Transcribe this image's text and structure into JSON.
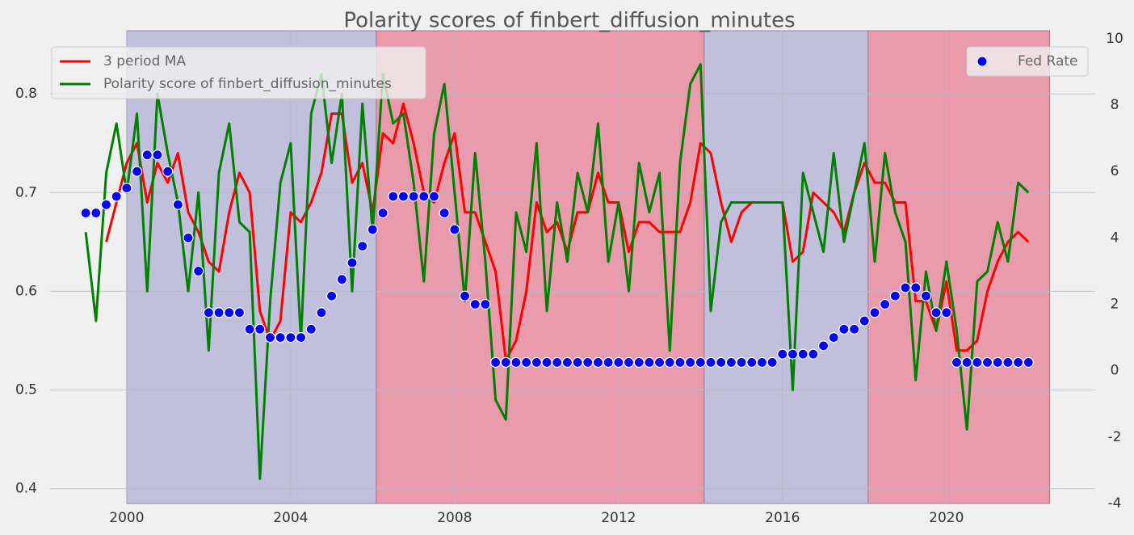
{
  "chart_data": {
    "type": "line",
    "title": "Polarity scores of finbert_diffusion_minutes",
    "x": [
      1999.0,
      1999.25,
      1999.5,
      1999.75,
      2000.0,
      2000.25,
      2000.5,
      2000.75,
      2001.0,
      2001.25,
      2001.5,
      2001.75,
      2002.0,
      2002.25,
      2002.5,
      2002.75,
      2003.0,
      2003.25,
      2003.5,
      2003.75,
      2004.0,
      2004.25,
      2004.5,
      2004.75,
      2005.0,
      2005.25,
      2005.5,
      2005.75,
      2006.0,
      2006.25,
      2006.5,
      2006.75,
      2007.0,
      2007.25,
      2007.5,
      2007.75,
      2008.0,
      2008.25,
      2008.5,
      2008.75,
      2009.0,
      2009.25,
      2009.5,
      2009.75,
      2010.0,
      2010.25,
      2010.5,
      2010.75,
      2011.0,
      2011.25,
      2011.5,
      2011.75,
      2012.0,
      2012.25,
      2012.5,
      2012.75,
      2013.0,
      2013.25,
      2013.5,
      2013.75,
      2014.0,
      2014.25,
      2014.5,
      2014.75,
      2015.0,
      2015.25,
      2015.5,
      2015.75,
      2016.0,
      2016.25,
      2016.5,
      2016.75,
      2017.0,
      2017.25,
      2017.5,
      2017.75,
      2018.0,
      2018.25,
      2018.5,
      2018.75,
      2019.0,
      2019.25,
      2019.5,
      2019.75,
      2020.0,
      2020.25,
      2020.5,
      2020.75,
      2021.0,
      2021.25,
      2021.5,
      2021.75,
      2022.0
    ],
    "series": [
      {
        "name": "3 period MA",
        "type": "line",
        "color": "#ff0000",
        "axis": "y",
        "values": [
          null,
          null,
          0.65,
          0.69,
          0.73,
          0.75,
          0.69,
          0.73,
          0.71,
          0.74,
          0.68,
          0.66,
          0.63,
          0.62,
          0.68,
          0.72,
          0.7,
          0.58,
          0.55,
          0.57,
          0.68,
          0.67,
          0.69,
          0.72,
          0.78,
          0.78,
          0.71,
          0.73,
          0.68,
          0.76,
          0.75,
          0.79,
          0.75,
          0.7,
          0.69,
          0.73,
          0.76,
          0.68,
          0.68,
          0.65,
          0.62,
          0.53,
          0.55,
          0.6,
          0.69,
          0.66,
          0.67,
          0.64,
          0.68,
          0.68,
          0.72,
          0.69,
          0.69,
          0.64,
          0.67,
          0.67,
          0.66,
          0.66,
          0.66,
          0.69,
          0.75,
          0.74,
          0.69,
          0.65,
          0.68,
          0.69,
          0.69,
          0.69,
          0.69,
          0.63,
          0.64,
          0.7,
          0.69,
          0.68,
          0.66,
          0.7,
          0.73,
          0.71,
          0.71,
          0.69,
          0.69,
          0.59,
          0.59,
          0.56,
          0.61,
          0.54,
          0.54,
          0.55,
          0.6,
          0.63,
          0.65,
          0.66,
          0.65
        ]
      },
      {
        "name": "Polarity score of finbert_diffusion_minutes",
        "type": "line",
        "color": "#008000",
        "axis": "y",
        "values": [
          0.66,
          0.57,
          0.72,
          0.77,
          0.7,
          0.78,
          0.6,
          0.8,
          0.74,
          0.69,
          0.6,
          0.7,
          0.54,
          0.72,
          0.77,
          0.67,
          0.66,
          0.41,
          0.59,
          0.71,
          0.75,
          0.55,
          0.78,
          0.82,
          0.73,
          0.8,
          0.6,
          0.79,
          0.66,
          0.82,
          0.77,
          0.78,
          0.71,
          0.61,
          0.76,
          0.81,
          0.7,
          0.59,
          0.74,
          0.63,
          0.49,
          0.47,
          0.68,
          0.64,
          0.75,
          0.58,
          0.69,
          0.63,
          0.72,
          0.68,
          0.77,
          0.63,
          0.69,
          0.6,
          0.73,
          0.68,
          0.72,
          0.54,
          0.73,
          0.81,
          0.83,
          0.58,
          0.67,
          0.69,
          0.69,
          0.69,
          0.69,
          0.69,
          0.69,
          0.5,
          0.72,
          0.68,
          0.64,
          0.74,
          0.65,
          0.7,
          0.75,
          0.63,
          0.74,
          0.68,
          0.65,
          0.51,
          0.62,
          0.56,
          0.63,
          0.56,
          0.46,
          0.61,
          0.62,
          0.67,
          0.63,
          0.71,
          0.7
        ]
      },
      {
        "name": "Fed Rate",
        "type": "scatter",
        "color": "#0000ff",
        "axis": "y2",
        "values": [
          4.75,
          4.75,
          5.0,
          5.25,
          5.5,
          6.0,
          6.5,
          6.5,
          6.0,
          5.0,
          4.0,
          3.0,
          1.75,
          1.75,
          1.75,
          1.75,
          1.25,
          1.25,
          1.0,
          1.0,
          1.0,
          1.0,
          1.25,
          1.75,
          2.25,
          2.75,
          3.25,
          3.75,
          4.25,
          4.75,
          5.25,
          5.25,
          5.25,
          5.25,
          5.25,
          4.75,
          4.25,
          2.25,
          2.0,
          2.0,
          0.25,
          0.25,
          0.25,
          0.25,
          0.25,
          0.25,
          0.25,
          0.25,
          0.25,
          0.25,
          0.25,
          0.25,
          0.25,
          0.25,
          0.25,
          0.25,
          0.25,
          0.25,
          0.25,
          0.25,
          0.25,
          0.25,
          0.25,
          0.25,
          0.25,
          0.25,
          0.25,
          0.25,
          0.5,
          0.5,
          0.5,
          0.5,
          0.75,
          1.0,
          1.25,
          1.25,
          1.5,
          1.75,
          2.0,
          2.25,
          2.5,
          2.5,
          2.25,
          1.75,
          1.75,
          0.25,
          0.25,
          0.25,
          0.25,
          0.25,
          0.25,
          0.25,
          0.25
        ]
      }
    ],
    "spans": [
      {
        "start": 2000.0,
        "end": 2006.09,
        "color": "#c0c0dc"
      },
      {
        "start": 2006.09,
        "end": 2014.09,
        "color": "#e99aab"
      },
      {
        "start": 2014.09,
        "end": 2018.09,
        "color": "#c0c0dc"
      },
      {
        "start": 2018.09,
        "end": 2022.52,
        "color": "#e99aab"
      }
    ],
    "xlim": [
      1998.13,
      2023.63
    ],
    "xticks": [
      2000,
      2004,
      2008,
      2012,
      2016,
      2020
    ],
    "ylim": [
      0.385,
      0.864
    ],
    "yticks": [
      0.4,
      0.5,
      0.6,
      0.7,
      0.8
    ],
    "y2lim": [
      -4,
      10.24
    ],
    "y2ticks": [
      -4,
      -2,
      0,
      2,
      4,
      6,
      8,
      10
    ],
    "grid": true,
    "legend": "upper left",
    "y2_legend": "upper right"
  }
}
